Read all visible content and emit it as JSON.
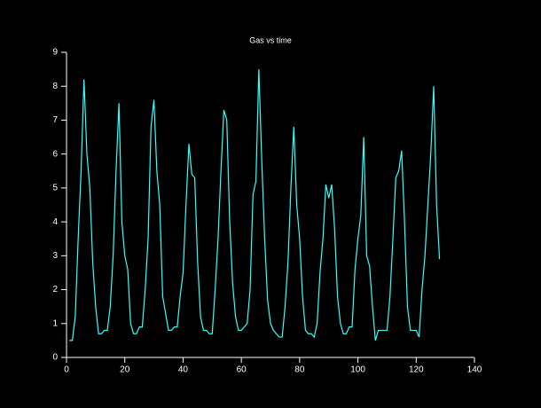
{
  "chart_data": {
    "type": "line",
    "title": "Gas vs time",
    "x": [
      1,
      2,
      3,
      4,
      5,
      6,
      7,
      8,
      9,
      10,
      11,
      12,
      13,
      14,
      15,
      16,
      17,
      18,
      19,
      20,
      21,
      22,
      23,
      24,
      25,
      26,
      27,
      28,
      29,
      30,
      31,
      32,
      33,
      34,
      35,
      36,
      37,
      38,
      39,
      40,
      41,
      42,
      43,
      44,
      45,
      46,
      47,
      48,
      49,
      50,
      51,
      52,
      53,
      54,
      55,
      56,
      57,
      58,
      59,
      60,
      61,
      62,
      63,
      64,
      65,
      66,
      67,
      68,
      69,
      70,
      71,
      72,
      73,
      74,
      75,
      76,
      77,
      78,
      79,
      80,
      81,
      82,
      83,
      84,
      85,
      86,
      87,
      88,
      89,
      90,
      91,
      92,
      93,
      94,
      95,
      96,
      97,
      98,
      99,
      100,
      101,
      102,
      103,
      104,
      105,
      106,
      107,
      108,
      109,
      110,
      111,
      112,
      113,
      114,
      115,
      116,
      117,
      118,
      119,
      120,
      121,
      122,
      123,
      124,
      125,
      126,
      127,
      128
    ],
    "series": [
      {
        "name": "Gas",
        "color": "#33ffff",
        "values": [
          0.5,
          0.5,
          1.2,
          3.5,
          5.5,
          8.2,
          6.0,
          5.0,
          2.8,
          1.5,
          0.7,
          0.7,
          0.8,
          0.8,
          1.5,
          3.0,
          5.5,
          7.5,
          4.0,
          3.0,
          2.6,
          1.0,
          0.7,
          0.7,
          0.9,
          0.9,
          2.0,
          3.5,
          6.8,
          7.6,
          5.5,
          4.5,
          1.8,
          1.3,
          0.8,
          0.8,
          0.9,
          0.9,
          1.8,
          2.5,
          4.5,
          6.3,
          5.4,
          5.3,
          2.8,
          1.2,
          0.8,
          0.8,
          0.7,
          0.7,
          2.0,
          3.5,
          5.5,
          7.3,
          7.0,
          4.0,
          2.2,
          1.2,
          0.8,
          0.8,
          0.9,
          1.0,
          2.0,
          4.8,
          5.2,
          8.5,
          5.8,
          3.5,
          1.7,
          1.0,
          0.8,
          0.7,
          0.6,
          0.6,
          1.5,
          2.8,
          5.0,
          6.8,
          4.5,
          3.5,
          1.8,
          0.8,
          0.7,
          0.7,
          0.6,
          1.0,
          2.5,
          3.5,
          5.1,
          4.7,
          5.1,
          3.8,
          1.8,
          1.0,
          0.7,
          0.7,
          0.9,
          0.9,
          2.6,
          3.5,
          4.2,
          6.5,
          3.0,
          2.7,
          1.5,
          0.5,
          0.8,
          0.8,
          0.8,
          0.8,
          1.8,
          3.5,
          5.3,
          5.5,
          6.1,
          4.0,
          1.5,
          0.8,
          0.8,
          0.8,
          0.6,
          2.0,
          3.0,
          4.5,
          6.0,
          8.0,
          4.5,
          2.9
        ]
      }
    ],
    "xlim": [
      0,
      140
    ],
    "xticks": [
      0,
      20,
      40,
      60,
      80,
      100,
      120,
      140
    ],
    "ylim": [
      0,
      9
    ],
    "yticks": [
      0,
      1,
      2,
      3,
      4,
      5,
      6,
      7,
      8,
      9
    ]
  }
}
